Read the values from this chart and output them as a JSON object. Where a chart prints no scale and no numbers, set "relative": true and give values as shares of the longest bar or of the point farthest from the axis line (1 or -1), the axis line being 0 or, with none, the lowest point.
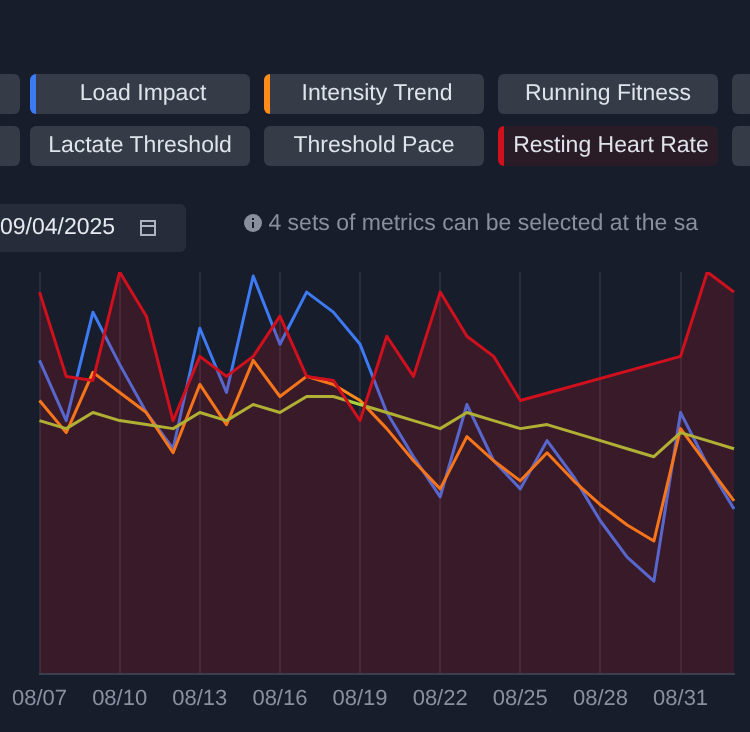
{
  "chart_data": {
    "type": "line",
    "relative": true,
    "legend": "top",
    "grid": "x",
    "categories": [
      "08/07",
      null,
      null,
      "08/10",
      null,
      null,
      "08/13",
      null,
      null,
      "08/16",
      null,
      null,
      "08/19",
      null,
      null,
      "08/22",
      null,
      null,
      "08/25",
      null,
      null,
      "08/28",
      null,
      null,
      "08/31",
      null,
      null
    ],
    "series": [
      {
        "name": "Load Impact",
        "color": "#3d7bf5",
        "values": [
          0.78,
          0.63,
          0.9,
          0.77,
          0.65,
          0.56,
          0.86,
          0.7,
          0.99,
          0.82,
          0.95,
          0.9,
          0.82,
          0.65,
          0.54,
          0.44,
          0.67,
          0.53,
          0.46,
          0.58,
          0.49,
          0.38,
          0.29,
          0.23,
          0.65,
          0.52,
          0.41
        ]
      },
      {
        "name": "Intensity Trend",
        "color": "#ff8c1a",
        "values": [
          0.68,
          0.6,
          0.75,
          0.7,
          0.65,
          0.55,
          0.72,
          0.62,
          0.78,
          0.69,
          0.74,
          0.72,
          0.68,
          0.61,
          0.53,
          0.46,
          0.59,
          0.53,
          0.48,
          0.55,
          0.48,
          0.42,
          0.37,
          0.33,
          0.61,
          0.52,
          0.43
        ]
      },
      {
        "color": "#a8d43a",
        "values": [
          0.63,
          0.61,
          0.65,
          0.63,
          0.62,
          0.61,
          0.65,
          0.63,
          0.67,
          0.65,
          0.69,
          0.69,
          0.67,
          0.65,
          0.63,
          0.61,
          0.65,
          0.63,
          0.61,
          0.62,
          0.6,
          0.58,
          0.56,
          0.54,
          0.6,
          0.58,
          0.56
        ]
      },
      {
        "name": "Resting Heart Rate",
        "type": "area",
        "color": "#d0101c",
        "values": [
          0.95,
          0.74,
          0.73,
          1,
          0.89,
          0.63,
          0.79,
          0.74,
          0.79,
          0.89,
          0.74,
          0.73,
          0.63,
          0.84,
          0.74,
          0.95,
          0.84,
          0.79,
          0.68,
          null,
          null,
          null,
          null,
          null,
          0.79,
          1,
          0.95
        ]
      }
    ],
    "annotations": [
      "Running Fitness",
      "Lactate Threshold",
      "Threshold Pace",
      "09/04/2025",
      "4 sets of metrics can be selected at the sa"
    ]
  }
}
